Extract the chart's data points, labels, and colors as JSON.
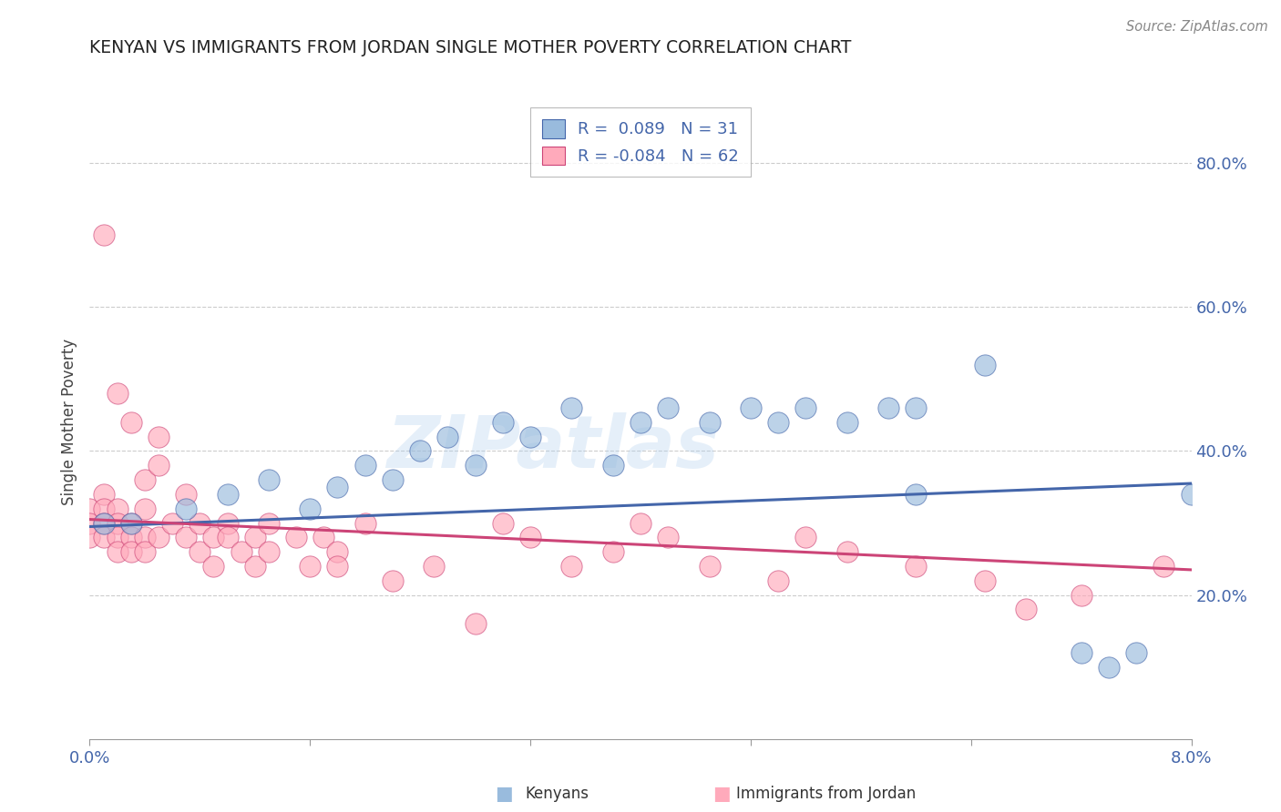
{
  "title": "KENYAN VS IMMIGRANTS FROM JORDAN SINGLE MOTHER POVERTY CORRELATION CHART",
  "source": "Source: ZipAtlas.com",
  "ylabel": "Single Mother Poverty",
  "ylabel_right_ticks": [
    "20.0%",
    "40.0%",
    "60.0%",
    "80.0%"
  ],
  "ylabel_right_vals": [
    0.2,
    0.4,
    0.6,
    0.8
  ],
  "blue_color": "#99BBDD",
  "pink_color": "#FFAABB",
  "blue_line_color": "#4466AA",
  "pink_line_color": "#CC4477",
  "watermark_text": "ZIPatlas",
  "blue_points": [
    [
      0.001,
      0.3
    ],
    [
      0.003,
      0.3
    ],
    [
      0.007,
      0.32
    ],
    [
      0.01,
      0.34
    ],
    [
      0.013,
      0.36
    ],
    [
      0.016,
      0.32
    ],
    [
      0.018,
      0.35
    ],
    [
      0.02,
      0.38
    ],
    [
      0.022,
      0.36
    ],
    [
      0.024,
      0.4
    ],
    [
      0.026,
      0.42
    ],
    [
      0.028,
      0.38
    ],
    [
      0.03,
      0.44
    ],
    [
      0.032,
      0.42
    ],
    [
      0.035,
      0.46
    ],
    [
      0.038,
      0.38
    ],
    [
      0.04,
      0.44
    ],
    [
      0.042,
      0.46
    ],
    [
      0.045,
      0.44
    ],
    [
      0.048,
      0.46
    ],
    [
      0.05,
      0.44
    ],
    [
      0.052,
      0.46
    ],
    [
      0.055,
      0.44
    ],
    [
      0.058,
      0.46
    ],
    [
      0.06,
      0.34
    ],
    [
      0.065,
      0.52
    ],
    [
      0.072,
      0.12
    ],
    [
      0.074,
      0.1
    ],
    [
      0.076,
      0.12
    ],
    [
      0.08,
      0.34
    ],
    [
      0.06,
      0.46
    ]
  ],
  "pink_points": [
    [
      0.0,
      0.32
    ],
    [
      0.0,
      0.3
    ],
    [
      0.0,
      0.28
    ],
    [
      0.001,
      0.34
    ],
    [
      0.001,
      0.32
    ],
    [
      0.001,
      0.3
    ],
    [
      0.001,
      0.28
    ],
    [
      0.001,
      0.7
    ],
    [
      0.002,
      0.32
    ],
    [
      0.002,
      0.3
    ],
    [
      0.002,
      0.28
    ],
    [
      0.002,
      0.26
    ],
    [
      0.002,
      0.48
    ],
    [
      0.003,
      0.44
    ],
    [
      0.003,
      0.3
    ],
    [
      0.003,
      0.28
    ],
    [
      0.003,
      0.26
    ],
    [
      0.004,
      0.36
    ],
    [
      0.004,
      0.32
    ],
    [
      0.004,
      0.28
    ],
    [
      0.004,
      0.26
    ],
    [
      0.005,
      0.42
    ],
    [
      0.005,
      0.38
    ],
    [
      0.005,
      0.28
    ],
    [
      0.006,
      0.3
    ],
    [
      0.007,
      0.34
    ],
    [
      0.007,
      0.28
    ],
    [
      0.008,
      0.3
    ],
    [
      0.008,
      0.26
    ],
    [
      0.009,
      0.28
    ],
    [
      0.009,
      0.24
    ],
    [
      0.01,
      0.3
    ],
    [
      0.01,
      0.28
    ],
    [
      0.011,
      0.26
    ],
    [
      0.012,
      0.28
    ],
    [
      0.012,
      0.24
    ],
    [
      0.013,
      0.3
    ],
    [
      0.013,
      0.26
    ],
    [
      0.015,
      0.28
    ],
    [
      0.016,
      0.24
    ],
    [
      0.017,
      0.28
    ],
    [
      0.018,
      0.26
    ],
    [
      0.018,
      0.24
    ],
    [
      0.02,
      0.3
    ],
    [
      0.022,
      0.22
    ],
    [
      0.025,
      0.24
    ],
    [
      0.028,
      0.16
    ],
    [
      0.03,
      0.3
    ],
    [
      0.032,
      0.28
    ],
    [
      0.035,
      0.24
    ],
    [
      0.038,
      0.26
    ],
    [
      0.04,
      0.3
    ],
    [
      0.042,
      0.28
    ],
    [
      0.045,
      0.24
    ],
    [
      0.05,
      0.22
    ],
    [
      0.052,
      0.28
    ],
    [
      0.055,
      0.26
    ],
    [
      0.06,
      0.24
    ],
    [
      0.065,
      0.22
    ],
    [
      0.068,
      0.18
    ],
    [
      0.072,
      0.2
    ],
    [
      0.078,
      0.24
    ]
  ],
  "xlim": [
    0.0,
    0.08
  ],
  "ylim": [
    0.0,
    0.88
  ],
  "blue_trend_x": [
    0.0,
    0.08
  ],
  "blue_trend_y": [
    0.295,
    0.355
  ],
  "pink_trend_x": [
    0.0,
    0.08
  ],
  "pink_trend_y": [
    0.305,
    0.235
  ],
  "background_color": "#FFFFFF",
  "grid_color": "#CCCCCC",
  "legend_labels": [
    "R =  0.089   N = 31",
    "R = -0.084   N = 62"
  ],
  "bottom_legend": [
    "Kenyans",
    "Immigrants from Jordan"
  ]
}
